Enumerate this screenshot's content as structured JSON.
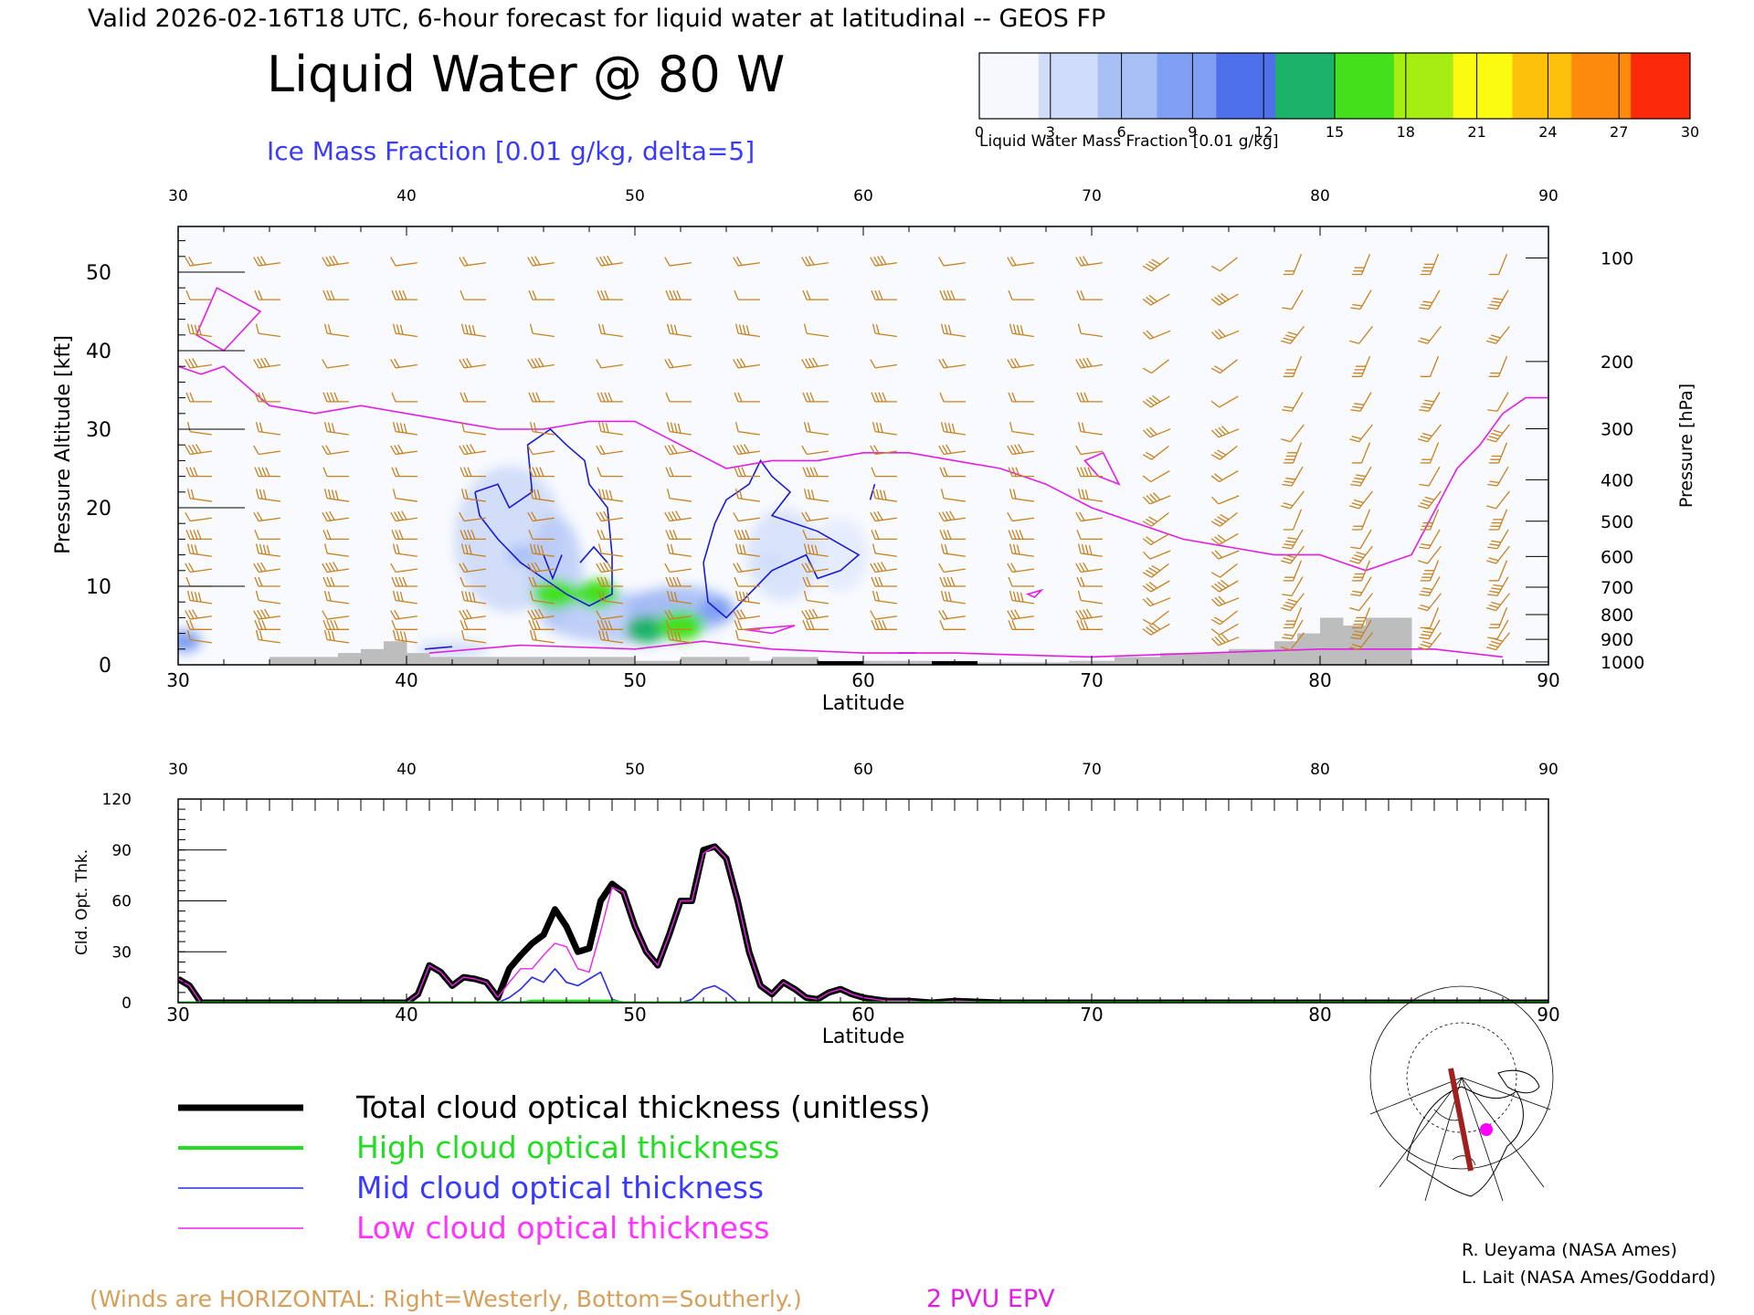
{
  "header": {
    "valid_line": "Valid 2026-02-16T18 UTC, 6-hour forecast for liquid water at latitudinal -- GEOS FP",
    "main_title": "Liquid Water @ 80 W",
    "contour_label": "Ice Mass Fraction [0.01 g/kg, delta=5]"
  },
  "colorbar": {
    "ticks": [
      "0",
      "3",
      "6",
      "9",
      "12",
      "15",
      "18",
      "21",
      "24",
      "27",
      "30"
    ],
    "colors": [
      "#f6f8fd",
      "#cfdcfa",
      "#a9c0f7",
      "#7f9ff3",
      "#4e70ea",
      "#1db26a",
      "#44e01c",
      "#a6ee12",
      "#fbfb12",
      "#fdc10b",
      "#fd8a0a",
      "#fc2a0a"
    ],
    "label": "Liquid Water Mass Fraction [0.01 g/kg]"
  },
  "top_panel": {
    "top_ticks": [
      "30",
      "40",
      "50",
      "60",
      "70",
      "80",
      "90"
    ],
    "bottom_ticks": [
      "30",
      "40",
      "50",
      "60",
      "70",
      "80",
      "90"
    ],
    "xlabel": "Latitude",
    "left_ticks": [
      "0",
      "10",
      "20",
      "30",
      "40",
      "50"
    ],
    "ylabel_left": "Pressure Altitude [kft]",
    "right_ticks": [
      "100",
      "200",
      "300",
      "400",
      "500",
      "600",
      "700",
      "800",
      "900",
      "1000"
    ],
    "ylabel_right": "Pressure [hPa]"
  },
  "bottom_panel": {
    "top_ticks": [
      "30",
      "40",
      "50",
      "60",
      "70",
      "80",
      "90"
    ],
    "bottom_ticks": [
      "30",
      "40",
      "50",
      "60",
      "70",
      "80",
      "90"
    ],
    "xlabel": "Latitude",
    "left_ticks": [
      "0",
      "30",
      "60",
      "90",
      "120"
    ],
    "ylabel": "Cld. Opt. Thk."
  },
  "legend": {
    "items": [
      {
        "label": "Total cloud optical thickness (unitless)",
        "color": "#000000"
      },
      {
        "label": "High cloud optical thickness",
        "color": "#22dd22"
      },
      {
        "label": "Mid cloud optical thickness",
        "color": "#2a2ae6"
      },
      {
        "label": "Low cloud optical thickness",
        "color": "#ee22ee"
      }
    ]
  },
  "footer": {
    "winds_note": "(Winds are HORIZONTAL: Right=Westerly, Bottom=Southerly.)",
    "pvu_label": "2 PVU EPV",
    "credit1": "R. Ueyama (NASA Ames)",
    "credit2": "L. Lait (NASA Ames/Goddard)"
  },
  "colors": {
    "wind_barb": "#c8821e",
    "epv": "#e21ee6",
    "ice_contour": "#1a1ad2",
    "terrain": "#bdbdbd"
  },
  "chart_data": [
    {
      "type": "heatmap",
      "title": "Liquid Water @ 80 W",
      "xlabel": "Latitude",
      "ylabel": "Pressure Altitude [kft]",
      "xlim": [
        30,
        90
      ],
      "ylim": [
        0,
        55
      ],
      "liquid_water_blobs": [
        {
          "lat": 46.5,
          "kft": 9,
          "value": 16
        },
        {
          "lat": 48.3,
          "kft": 9,
          "value": 15
        },
        {
          "lat": 50.5,
          "kft": 4.5,
          "value": 14
        },
        {
          "lat": 52.0,
          "kft": 5.0,
          "value": 17
        },
        {
          "lat": 53.5,
          "kft": 7,
          "value": 9
        },
        {
          "lat": 45.0,
          "kft": 14,
          "value": 5
        },
        {
          "lat": 56.0,
          "kft": 13,
          "value": 4
        },
        {
          "lat": 30.3,
          "kft": 3,
          "value": 8
        }
      ],
      "epv_2pvu_lat": [
        30,
        31,
        32,
        34,
        36,
        38,
        40,
        42,
        44,
        46,
        48,
        50,
        52,
        54,
        56,
        58,
        60,
        62,
        64,
        66,
        68,
        70,
        72,
        74,
        76,
        78,
        80,
        82,
        84,
        86,
        87,
        88,
        89,
        90
      ],
      "epv_2pvu_kft": [
        38,
        37,
        38,
        33,
        32,
        33,
        32,
        31,
        30,
        30,
        31,
        31,
        28,
        25,
        26,
        26,
        27,
        27,
        26,
        25,
        23,
        20,
        18,
        16,
        15,
        14,
        14,
        12,
        14,
        25,
        28,
        32,
        34,
        34
      ],
      "terrain_lat": [
        34,
        35,
        36,
        37,
        38,
        39,
        40,
        41,
        42,
        43,
        44,
        45,
        46,
        47,
        48,
        49,
        50,
        51,
        52,
        53,
        54,
        55,
        56,
        57,
        58,
        59,
        60,
        61,
        62,
        63,
        64,
        65,
        66,
        67,
        68,
        69,
        70,
        71,
        72,
        73,
        74,
        75,
        76,
        77,
        78,
        79,
        80,
        81,
        82,
        83
      ],
      "terrain_kft": [
        1,
        1,
        1,
        1.5,
        2,
        3,
        1.5,
        1,
        1,
        1,
        1,
        1,
        1,
        1,
        1,
        1,
        0.5,
        0.5,
        1,
        1,
        1,
        0.5,
        1,
        1,
        0.5,
        0.5,
        0.5,
        0.5,
        0.5,
        0.5,
        0.3,
        0.3,
        0.3,
        0.3,
        0.3,
        0.5,
        0.5,
        1,
        1,
        1.5,
        1.5,
        1.5,
        2,
        2,
        3,
        4,
        6,
        5,
        6,
        6
      ]
    },
    {
      "type": "line",
      "ylabel": "Cld. Opt. Thk.",
      "xlabel": "Latitude",
      "xlim": [
        30,
        90
      ],
      "ylim": [
        0,
        120
      ],
      "x": [
        30,
        30.5,
        31,
        40,
        40.5,
        41,
        41.5,
        42,
        42.5,
        43,
        43.5,
        44,
        44.5,
        45,
        45.5,
        46,
        46.5,
        47,
        47.5,
        48,
        48.5,
        49,
        49.5,
        50,
        50.5,
        51,
        51.5,
        52,
        52.5,
        53,
        53.5,
        54,
        54.5,
        55,
        55.5,
        56,
        56.5,
        57,
        57.5,
        58,
        58.5,
        59,
        59.5,
        60,
        61,
        62,
        63,
        64,
        66,
        70,
        80,
        90
      ],
      "series": [
        {
          "name": "Total cloud optical thickness (unitless)",
          "values": [
            14,
            10,
            0,
            0,
            5,
            22,
            18,
            10,
            15,
            14,
            12,
            3,
            20,
            28,
            35,
            40,
            55,
            45,
            30,
            32,
            60,
            70,
            65,
            45,
            30,
            22,
            40,
            60,
            60,
            90,
            92,
            85,
            60,
            30,
            10,
            5,
            12,
            8,
            3,
            2,
            6,
            8,
            5,
            3,
            1,
            1,
            0,
            1,
            0,
            0,
            0,
            0
          ]
        },
        {
          "name": "High cloud optical thickness",
          "values": [
            0,
            0,
            0,
            0,
            0,
            0,
            0,
            0,
            0,
            0,
            0,
            0,
            0,
            0,
            1,
            1,
            1,
            1,
            1,
            1,
            1,
            1,
            0,
            0,
            0,
            0,
            0,
            0,
            0,
            0,
            0,
            0,
            0,
            0,
            0,
            0,
            0,
            0,
            0,
            0,
            0,
            0,
            0,
            0,
            0,
            0,
            0,
            0,
            0,
            0,
            0,
            0
          ]
        },
        {
          "name": "Mid cloud optical thickness",
          "values": [
            0,
            0,
            0,
            0,
            0,
            0,
            0,
            0,
            0,
            0,
            0,
            0,
            3,
            8,
            15,
            12,
            20,
            12,
            10,
            14,
            18,
            2,
            0,
            0,
            0,
            0,
            0,
            0,
            2,
            8,
            10,
            6,
            0,
            0,
            0,
            0,
            0,
            0,
            0,
            0,
            0,
            0,
            0,
            0,
            0,
            0,
            0,
            0,
            0,
            0,
            0,
            0
          ]
        },
        {
          "name": "Low cloud optical thickness",
          "values": [
            14,
            10,
            0,
            0,
            5,
            22,
            18,
            10,
            15,
            14,
            12,
            3,
            12,
            20,
            20,
            28,
            35,
            33,
            20,
            18,
            42,
            68,
            65,
            45,
            30,
            22,
            40,
            60,
            60,
            88,
            92,
            85,
            60,
            30,
            10,
            5,
            12,
            8,
            3,
            2,
            6,
            8,
            5,
            3,
            1,
            1,
            0,
            1,
            0,
            0,
            0,
            0
          ]
        }
      ]
    }
  ]
}
